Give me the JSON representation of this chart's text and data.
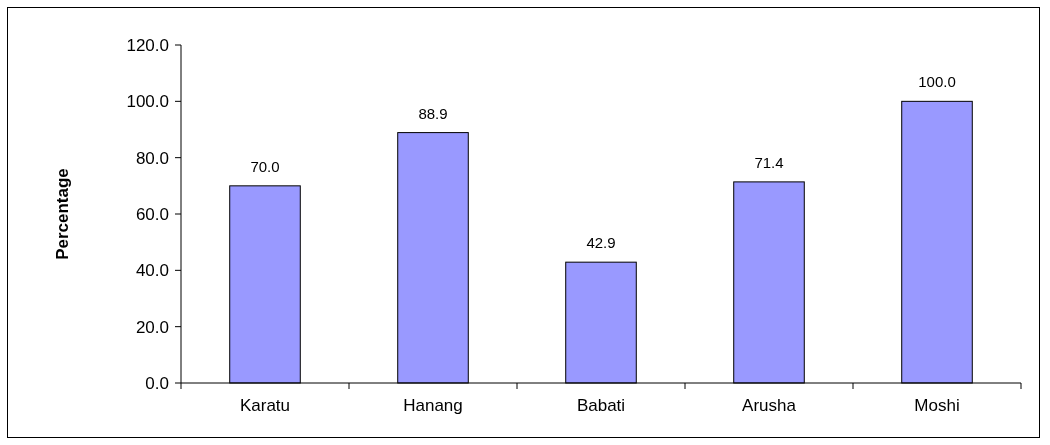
{
  "chart_data": {
    "type": "bar",
    "ylabel": "Percentage",
    "categories": [
      "Karatu",
      "Hanang",
      "Babati",
      "Arusha",
      "Moshi"
    ],
    "values": [
      70.0,
      88.9,
      42.9,
      71.4,
      100.0
    ],
    "value_labels": [
      "70.0",
      "88.9",
      "42.9",
      "71.4",
      "100.0"
    ],
    "color": "#9999ff",
    "ylim": [
      0,
      120
    ],
    "yticks": [
      {
        "value": 0,
        "label": "0.0"
      },
      {
        "value": 20,
        "label": "20.0"
      },
      {
        "value": 40,
        "label": "40.0"
      },
      {
        "value": 60,
        "label": "60.0"
      },
      {
        "value": 80,
        "label": "80.0"
      },
      {
        "value": 100,
        "label": "100.0"
      },
      {
        "value": 120,
        "label": "120.0"
      }
    ],
    "tick_labels": true
  }
}
